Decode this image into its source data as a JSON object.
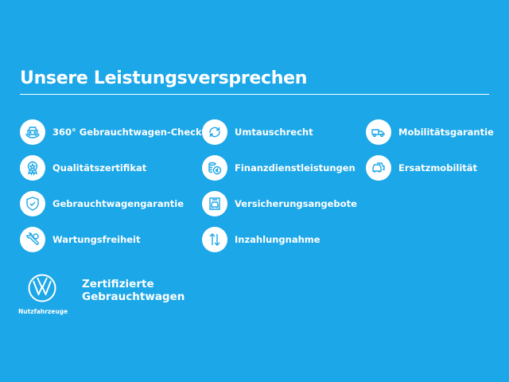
{
  "header": {
    "title": "Unsere Leistungsversprechen"
  },
  "colors": {
    "background": "#1ca7e8",
    "icon": "#1ca7e8",
    "foreground": "#ffffff"
  },
  "items": [
    {
      "label": "360° Gebrauchtwagen-Check",
      "icon": "car-check-icon"
    },
    {
      "label": "Qualitätszertifikat",
      "icon": "certificate-icon"
    },
    {
      "label": "Gebrauchtwagengarantie",
      "icon": "shield-check-icon"
    },
    {
      "label": "Wartungsfreiheit",
      "icon": "wrench-icon"
    },
    {
      "label": "Umtauschrecht",
      "icon": "exchange-icon"
    },
    {
      "label": "Finanzdienstleistungen",
      "icon": "euro-coins-icon"
    },
    {
      "label": "Versicherungsangebote",
      "icon": "insurance-car-icon"
    },
    {
      "label": "Inzahlungnahme",
      "icon": "trade-in-arrows-icon"
    },
    {
      "label": "Mobilitätsgarantie",
      "icon": "tow-truck-icon"
    },
    {
      "label": "Ersatzmobilität",
      "icon": "replacement-car-icon"
    }
  ],
  "footer": {
    "logo_text": "VW",
    "brand_sub": "Nutzfahrzeuge",
    "cert_line1": "Zertifizierte",
    "cert_line2": "Gebrauchtwagen"
  }
}
